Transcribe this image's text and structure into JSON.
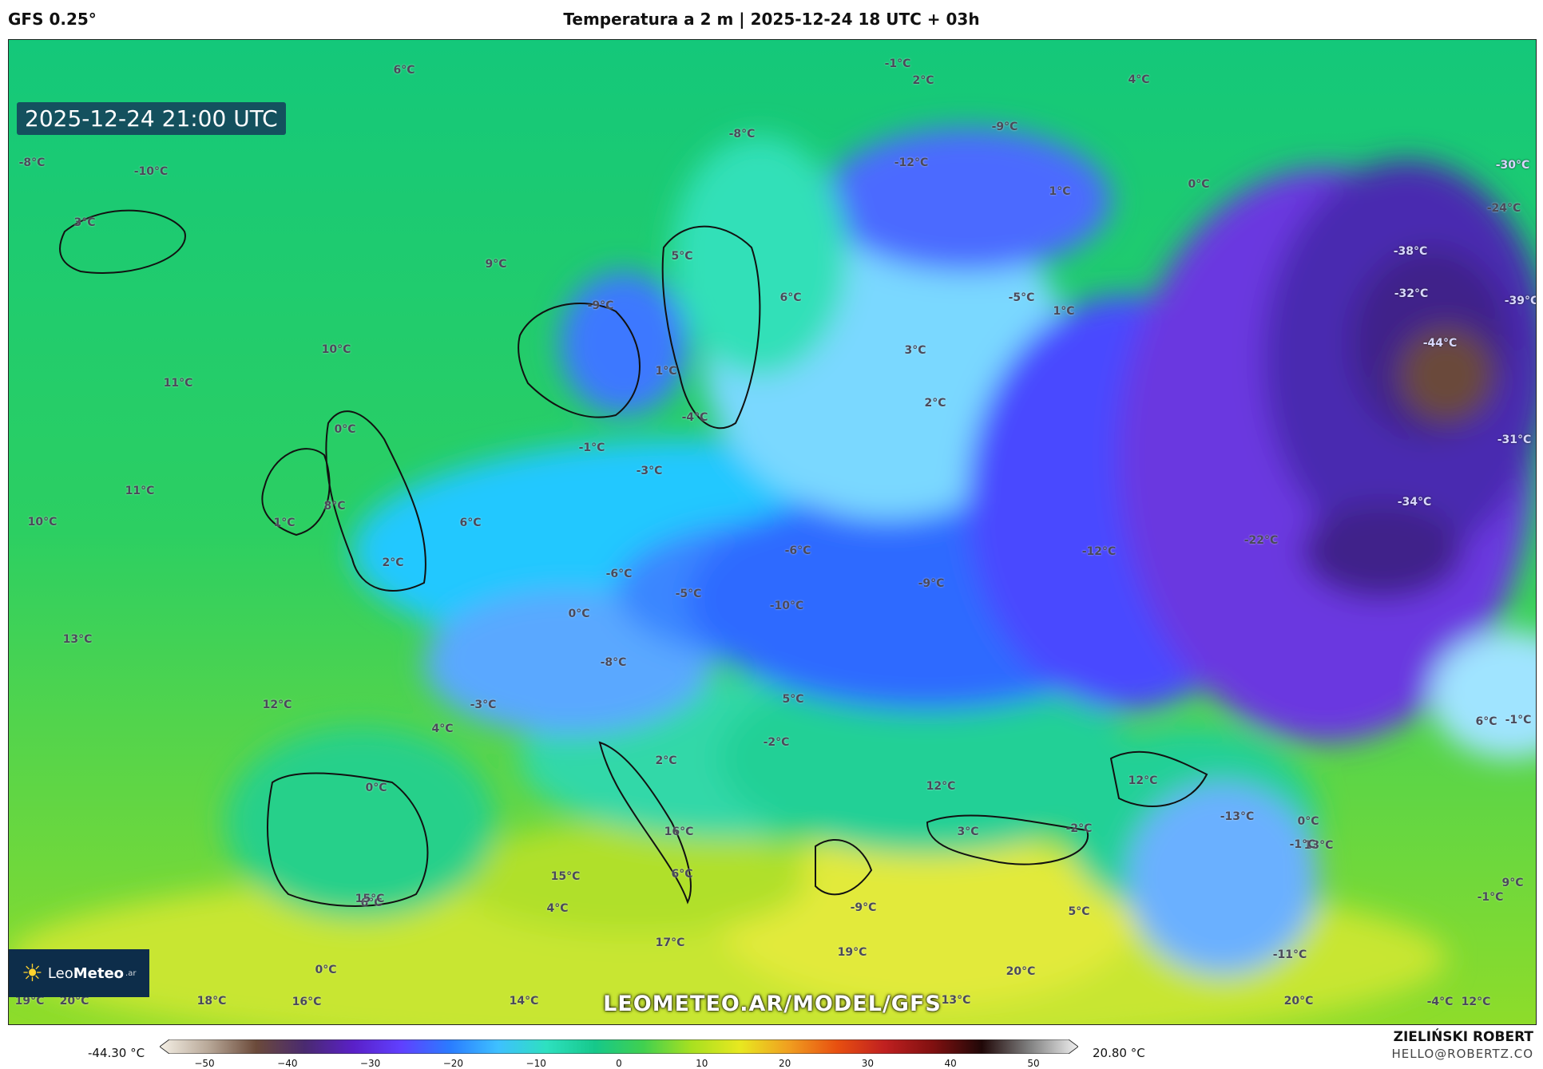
{
  "header": {
    "model": "GFS 0.25°",
    "title": "Temperatura a 2 m | 2025-12-24 18 UTC + 03h"
  },
  "map": {
    "valid_time": "2025-12-24 21:00 UTC",
    "watermark": "LEOMETEO.AR/MODEL/GFS",
    "labels": [
      {
        "text": "6°C"
      },
      {
        "text": "-1°C"
      },
      {
        "text": "2°C"
      },
      {
        "text": "4°C"
      },
      {
        "text": "-8°C"
      },
      {
        "text": "-9°C"
      },
      {
        "text": "-12°C"
      },
      {
        "text": "1°C"
      },
      {
        "text": "0°C"
      },
      {
        "text": "-8°C"
      },
      {
        "text": "-10°C"
      },
      {
        "text": "3°C"
      },
      {
        "text": "9°C"
      },
      {
        "text": "5°C"
      },
      {
        "text": "6°C"
      },
      {
        "text": "-5°C"
      },
      {
        "text": "1°C"
      },
      {
        "text": "-9°C"
      },
      {
        "text": "10°C"
      },
      {
        "text": "11°C"
      },
      {
        "text": "1°C"
      },
      {
        "text": "3°C"
      },
      {
        "text": "-4°C"
      },
      {
        "text": "2°C"
      },
      {
        "text": "0°C"
      },
      {
        "text": "-1°C"
      },
      {
        "text": "-3°C"
      },
      {
        "text": "11°C"
      },
      {
        "text": "8°C"
      },
      {
        "text": "10°C"
      },
      {
        "text": "1°C"
      },
      {
        "text": "6°C"
      },
      {
        "text": "-6°C"
      },
      {
        "text": "-12°C"
      },
      {
        "text": "-22°C"
      },
      {
        "text": "2°C"
      },
      {
        "text": "-6°C"
      },
      {
        "text": "-9°C"
      },
      {
        "text": "-5°C"
      },
      {
        "text": "-10°C"
      },
      {
        "text": "0°C"
      },
      {
        "text": "13°C"
      },
      {
        "text": "-8°C"
      },
      {
        "text": "12°C"
      },
      {
        "text": "-3°C"
      },
      {
        "text": "5°C"
      },
      {
        "text": "4°C"
      },
      {
        "text": "-2°C"
      },
      {
        "text": "0°C"
      },
      {
        "text": "2°C"
      },
      {
        "text": "12°C"
      },
      {
        "text": "12°C"
      },
      {
        "text": "16°C"
      },
      {
        "text": "3°C"
      },
      {
        "text": "-2°C"
      },
      {
        "text": "-13°C"
      },
      {
        "text": "13°C"
      },
      {
        "text": "15°C"
      },
      {
        "text": "6°C"
      },
      {
        "text": "6°C"
      },
      {
        "text": "15°C"
      },
      {
        "text": "4°C"
      },
      {
        "text": "-9°C"
      },
      {
        "text": "5°C"
      },
      {
        "text": "17°C"
      },
      {
        "text": "19°C"
      },
      {
        "text": "0°C"
      },
      {
        "text": "20°C"
      },
      {
        "text": "-11°C"
      },
      {
        "text": "19°C"
      },
      {
        "text": "20°C"
      },
      {
        "text": "18°C"
      },
      {
        "text": "16°C"
      },
      {
        "text": "14°C"
      },
      {
        "text": "13°C"
      },
      {
        "text": "20°C"
      },
      {
        "text": "-4°C"
      },
      {
        "text": "12°C"
      },
      {
        "text": "-1°C"
      },
      {
        "text": "9°C"
      },
      {
        "text": "-30°C"
      },
      {
        "text": "-24°C"
      },
      {
        "text": "-38°C"
      },
      {
        "text": "-32°C"
      },
      {
        "text": "-39°C"
      },
      {
        "text": "-44°C"
      },
      {
        "text": "-31°C"
      },
      {
        "text": "-34°C"
      },
      {
        "text": "6°C"
      },
      {
        "text": "-1°C"
      },
      {
        "text": "0°C"
      },
      {
        "text": "-1°C"
      }
    ]
  },
  "logo": {
    "name_light": "Leo",
    "name_bold": "Meteo",
    "suffix": ".ar"
  },
  "colorbar": {
    "min_label": "-44.30 °C",
    "max_label": "20.80 °C",
    "ticks": [
      "−50",
      "−40",
      "−30",
      "−20",
      "−10",
      "0",
      "10",
      "20",
      "30",
      "40",
      "50"
    ],
    "stops": [
      "#f5f0e6",
      "#b8a898",
      "#6b4a3a",
      "#4a2a70",
      "#5a20c8",
      "#6040ff",
      "#2a7cff",
      "#3ec0ff",
      "#2ee0c0",
      "#16c88a",
      "#40d050",
      "#a8e020",
      "#e8e820",
      "#f0a020",
      "#e85010",
      "#c02020",
      "#801010",
      "#200808",
      "#808080",
      "#f0f0f0"
    ]
  },
  "footer": {
    "author": "ZIELIŃSKI ROBERT",
    "email": "HELLO@ROBERTZ.CO"
  }
}
